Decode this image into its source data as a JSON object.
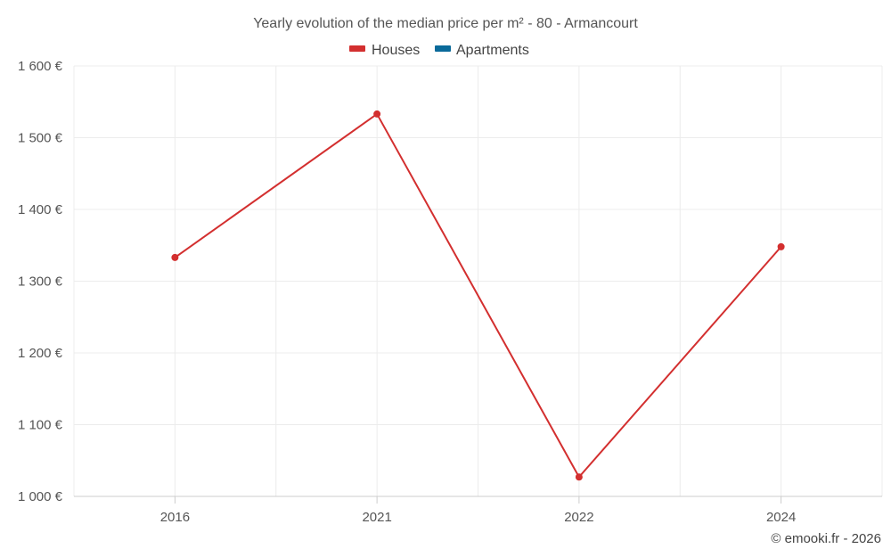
{
  "chart_data": {
    "type": "line",
    "title": "Yearly evolution of the median price per m² - 80 - Armancourt",
    "categories": [
      "2016",
      "2021",
      "2022",
      "2024"
    ],
    "series": [
      {
        "name": "Houses",
        "color": "#d32f2f",
        "values": [
          1333,
          1533,
          1027,
          1348
        ]
      },
      {
        "name": "Apartments",
        "color": "#0a6a9a",
        "values": [
          null,
          null,
          null,
          null
        ]
      }
    ],
    "ylim": [
      1000,
      1600
    ],
    "yticks": [
      1000,
      1100,
      1200,
      1300,
      1400,
      1500,
      1600
    ],
    "ytick_labels": [
      "1 000 €",
      "1 100 €",
      "1 200 €",
      "1 300 €",
      "1 400 €",
      "1 500 €",
      "1 600 €"
    ],
    "xlabel": "",
    "ylabel": "",
    "grid": true,
    "legend_position": "top-center"
  },
  "credit": "© emooki.fr - 2026"
}
